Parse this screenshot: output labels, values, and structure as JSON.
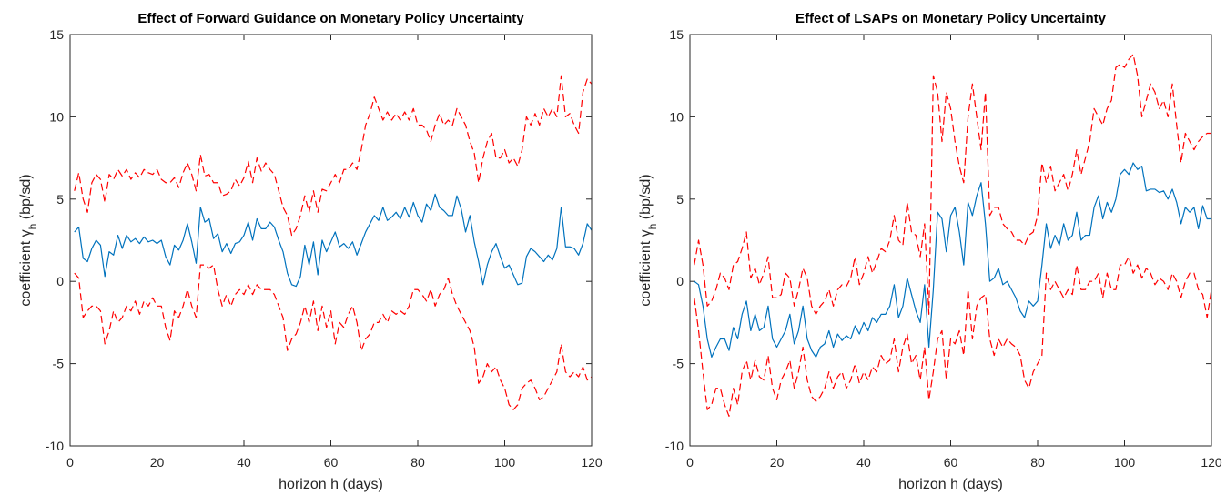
{
  "chart_data": [
    {
      "type": "line",
      "title": "Effect of Forward Guidance on Monetary Policy Uncertainty",
      "xlabel": "horizon h (days)",
      "ylabel": [
        "coefficient γ",
        "h",
        " (bp/sd)"
      ],
      "xlim": [
        0,
        120
      ],
      "xticks": [
        0,
        20,
        40,
        60,
        80,
        100,
        120
      ],
      "ylim": [
        -10,
        15
      ],
      "yticks": [
        -10,
        -5,
        0,
        5,
        10,
        15
      ],
      "x": [
        1,
        2,
        3,
        4,
        5,
        6,
        7,
        8,
        9,
        10,
        11,
        12,
        13,
        14,
        15,
        16,
        17,
        18,
        19,
        20,
        21,
        22,
        23,
        24,
        25,
        26,
        27,
        28,
        29,
        30,
        31,
        32,
        33,
        34,
        35,
        36,
        37,
        38,
        39,
        40,
        41,
        42,
        43,
        44,
        45,
        46,
        47,
        48,
        49,
        50,
        51,
        52,
        53,
        54,
        55,
        56,
        57,
        58,
        59,
        60,
        61,
        62,
        63,
        64,
        65,
        66,
        67,
        68,
        69,
        70,
        71,
        72,
        73,
        74,
        75,
        76,
        77,
        78,
        79,
        80,
        81,
        82,
        83,
        84,
        85,
        86,
        87,
        88,
        89,
        90,
        91,
        92,
        93,
        94,
        95,
        96,
        97,
        98,
        99,
        100,
        101,
        102,
        103,
        104,
        105,
        106,
        107,
        108,
        109,
        110,
        111,
        112,
        113,
        114,
        115,
        116,
        117,
        118,
        119,
        120
      ],
      "series": [
        {
          "color": "#0072bd",
          "style": "solid",
          "values": [
            3.0,
            3.3,
            1.4,
            1.2,
            2.0,
            2.5,
            2.2,
            0.3,
            1.8,
            1.6,
            2.8,
            2.0,
            2.8,
            2.4,
            2.6,
            2.3,
            2.7,
            2.4,
            2.5,
            2.3,
            2.5,
            1.5,
            1.0,
            2.2,
            1.9,
            2.5,
            3.5,
            2.4,
            1.1,
            4.5,
            3.6,
            3.8,
            2.6,
            2.9,
            1.8,
            2.3,
            1.7,
            2.3,
            2.4,
            2.8,
            3.6,
            2.5,
            3.8,
            3.2,
            3.2,
            3.6,
            3.3,
            2.5,
            1.8,
            0.5,
            -0.2,
            -0.3,
            0.3,
            2.2,
            1.0,
            2.4,
            0.4,
            2.5,
            1.8,
            2.4,
            3.0,
            2.1,
            2.3,
            2.0,
            2.4,
            1.6,
            2.3,
            3.0,
            3.5,
            4.0,
            3.7,
            4.5,
            3.7,
            3.9,
            4.2,
            3.8,
            4.5,
            3.9,
            4.8,
            4.0,
            3.6,
            4.7,
            4.3,
            5.3,
            4.5,
            4.3,
            4.0,
            4.0,
            5.2,
            4.4,
            3.0,
            4.0,
            2.4,
            1.2,
            -0.2,
            1.0,
            1.8,
            2.3,
            1.5,
            0.8,
            1.0,
            0.4,
            -0.2,
            -0.1,
            1.5,
            2.0,
            1.8,
            1.5,
            1.2,
            1.6,
            1.3,
            2.0,
            4.5,
            2.1,
            2.1,
            2.0,
            1.6,
            2.3,
            3.5,
            3.1
          ]
        },
        {
          "color": "#ff0000",
          "style": "dashed",
          "values": [
            5.5,
            6.6,
            5.0,
            4.2,
            6.0,
            6.5,
            6.2,
            4.8,
            6.5,
            6.2,
            6.8,
            6.4,
            6.8,
            6.2,
            6.6,
            6.3,
            6.8,
            6.6,
            6.5,
            6.8,
            6.2,
            6.0,
            6.0,
            6.3,
            5.7,
            6.6,
            7.2,
            6.5,
            5.5,
            7.7,
            6.4,
            6.5,
            6.0,
            6.0,
            5.2,
            5.3,
            5.5,
            6.2,
            5.8,
            6.3,
            7.3,
            6.0,
            7.5,
            6.7,
            7.2,
            6.8,
            6.5,
            5.5,
            4.5,
            4.0,
            2.8,
            3.2,
            4.0,
            5.2,
            4.2,
            5.5,
            4.2,
            5.6,
            5.5,
            6.0,
            6.5,
            6.0,
            6.8,
            6.8,
            7.2,
            6.8,
            8.0,
            9.5,
            10.2,
            11.2,
            10.5,
            9.8,
            10.3,
            9.8,
            10.2,
            9.8,
            10.3,
            9.8,
            10.5,
            9.5,
            9.5,
            9.2,
            8.5,
            9.5,
            10.2,
            9.5,
            9.8,
            9.5,
            10.5,
            10.0,
            9.5,
            8.5,
            7.8,
            6.0,
            7.5,
            8.5,
            9.0,
            7.5,
            7.5,
            8.0,
            7.2,
            7.5,
            7.0,
            8.0,
            10.0,
            9.5,
            10.2,
            9.5,
            10.5,
            10.0,
            10.5,
            10.0,
            12.5,
            10.0,
            10.2,
            9.5,
            9.0,
            11.5,
            12.3,
            12.0
          ]
        },
        {
          "color": "#ff0000",
          "style": "dashed",
          "values": [
            0.5,
            0.2,
            -2.2,
            -1.8,
            -1.5,
            -1.5,
            -1.8,
            -3.8,
            -3.0,
            -1.8,
            -2.5,
            -2.2,
            -1.5,
            -1.8,
            -1.2,
            -2.0,
            -1.2,
            -1.5,
            -1.0,
            -1.5,
            -1.5,
            -2.8,
            -3.6,
            -1.8,
            -2.2,
            -1.5,
            -0.5,
            -1.5,
            -2.2,
            1.0,
            1.0,
            0.8,
            1.0,
            -0.5,
            -1.5,
            -0.8,
            -1.5,
            -0.8,
            -0.5,
            -0.8,
            -0.2,
            -0.8,
            -0.2,
            -0.5,
            -0.5,
            -0.5,
            -0.8,
            -1.5,
            -2.2,
            -4.2,
            -3.5,
            -3.2,
            -2.5,
            -1.5,
            -2.5,
            -1.2,
            -3.0,
            -1.5,
            -2.8,
            -1.8,
            -3.8,
            -2.5,
            -2.8,
            -2.0,
            -1.5,
            -2.5,
            -4.2,
            -3.5,
            -3.2,
            -2.5,
            -2.5,
            -2.0,
            -2.5,
            -1.8,
            -2.0,
            -1.8,
            -2.0,
            -1.5,
            -0.5,
            -0.5,
            -0.8,
            -1.2,
            -0.5,
            -1.5,
            -0.8,
            -0.5,
            0.2,
            -0.8,
            -1.5,
            -2.0,
            -2.5,
            -3.0,
            -4.0,
            -6.2,
            -5.8,
            -5.0,
            -5.5,
            -5.2,
            -6.0,
            -6.5,
            -7.5,
            -7.8,
            -7.5,
            -6.5,
            -6.2,
            -6.0,
            -6.5,
            -7.2,
            -7.0,
            -6.5,
            -6.0,
            -5.5,
            -3.8,
            -5.5,
            -5.8,
            -5.5,
            -5.8,
            -5.2,
            -6.0,
            -5.8
          ]
        }
      ]
    },
    {
      "type": "line",
      "title": "Effect of LSAPs on Monetary Policy Uncertainty",
      "xlabel": "horizon h (days)",
      "ylabel": [
        "coefficient γ",
        "h",
        " (bp/sd)"
      ],
      "xlim": [
        0,
        120
      ],
      "xticks": [
        0,
        20,
        40,
        60,
        80,
        100,
        120
      ],
      "ylim": [
        -10,
        15
      ],
      "yticks": [
        -10,
        -5,
        0,
        5,
        10,
        15
      ],
      "x": [
        1,
        2,
        3,
        4,
        5,
        6,
        7,
        8,
        9,
        10,
        11,
        12,
        13,
        14,
        15,
        16,
        17,
        18,
        19,
        20,
        21,
        22,
        23,
        24,
        25,
        26,
        27,
        28,
        29,
        30,
        31,
        32,
        33,
        34,
        35,
        36,
        37,
        38,
        39,
        40,
        41,
        42,
        43,
        44,
        45,
        46,
        47,
        48,
        49,
        50,
        51,
        52,
        53,
        54,
        55,
        56,
        57,
        58,
        59,
        60,
        61,
        62,
        63,
        64,
        65,
        66,
        67,
        68,
        69,
        70,
        71,
        72,
        73,
        74,
        75,
        76,
        77,
        78,
        79,
        80,
        81,
        82,
        83,
        84,
        85,
        86,
        87,
        88,
        89,
        90,
        91,
        92,
        93,
        94,
        95,
        96,
        97,
        98,
        99,
        100,
        101,
        102,
        103,
        104,
        105,
        106,
        107,
        108,
        109,
        110,
        111,
        112,
        113,
        114,
        115,
        116,
        117,
        118,
        119,
        120
      ],
      "series": [
        {
          "color": "#0072bd",
          "style": "solid",
          "values": [
            0.0,
            -0.2,
            -1.5,
            -3.5,
            -4.6,
            -4.0,
            -3.5,
            -3.5,
            -4.2,
            -2.8,
            -3.5,
            -2.0,
            -1.2,
            -3.0,
            -2.0,
            -3.0,
            -2.8,
            -1.5,
            -3.5,
            -4.0,
            -3.5,
            -3.0,
            -2.0,
            -3.8,
            -3.0,
            -1.5,
            -3.5,
            -4.2,
            -4.6,
            -4.0,
            -3.8,
            -3.0,
            -4.0,
            -3.2,
            -3.6,
            -3.3,
            -3.5,
            -2.7,
            -3.2,
            -2.5,
            -3.0,
            -2.2,
            -2.5,
            -2.0,
            -2.0,
            -1.5,
            -0.2,
            -2.2,
            -1.5,
            0.2,
            -0.8,
            -1.8,
            -2.5,
            -0.2,
            -4.0,
            -0.5,
            4.2,
            3.8,
            1.8,
            4.0,
            4.5,
            3.0,
            1.0,
            4.8,
            4.0,
            5.2,
            6.0,
            3.5,
            0.0,
            0.2,
            0.8,
            -0.2,
            0.0,
            -0.5,
            -1.0,
            -1.8,
            -2.2,
            -1.2,
            -1.5,
            -1.2,
            1.0,
            3.5,
            2.0,
            2.8,
            2.2,
            3.5,
            2.5,
            2.8,
            4.2,
            2.5,
            2.8,
            2.8,
            4.5,
            5.2,
            3.8,
            4.8,
            4.2,
            5.0,
            6.5,
            6.8,
            6.5,
            7.2,
            6.8,
            7.0,
            5.5,
            5.6,
            5.6,
            5.4,
            5.5,
            5.0,
            5.6,
            4.8,
            3.5,
            4.5,
            4.2,
            4.5,
            3.2,
            4.6,
            3.8,
            3.8
          ]
        },
        {
          "color": "#ff0000",
          "style": "dashed",
          "values": [
            1.0,
            2.5,
            1.0,
            -1.5,
            -1.2,
            -0.5,
            0.5,
            0.2,
            -0.5,
            1.0,
            1.2,
            2.0,
            3.0,
            0.2,
            0.8,
            -0.2,
            0.5,
            1.5,
            -1.0,
            -1.0,
            -0.8,
            0.5,
            0.2,
            -1.5,
            -0.5,
            0.8,
            0.2,
            -1.5,
            -2.0,
            -1.5,
            -1.2,
            -0.5,
            -1.5,
            -0.5,
            -0.2,
            -0.3,
            0.2,
            1.5,
            -0.2,
            0.5,
            1.5,
            0.5,
            1.2,
            2.0,
            1.8,
            2.5,
            4.0,
            2.5,
            2.2,
            4.8,
            3.0,
            2.8,
            1.5,
            3.5,
            -2.0,
            12.5,
            11.5,
            8.5,
            11.5,
            10.5,
            8.5,
            7.0,
            6.0,
            10.0,
            12.0,
            10.0,
            8.0,
            11.5,
            4.0,
            4.5,
            4.5,
            3.5,
            3.2,
            3.0,
            2.5,
            2.5,
            2.2,
            2.8,
            3.0,
            4.0,
            7.2,
            6.0,
            7.0,
            5.5,
            6.0,
            6.5,
            5.5,
            6.5,
            8.0,
            6.5,
            7.5,
            8.5,
            10.5,
            10.0,
            9.5,
            10.5,
            11.0,
            13.0,
            13.2,
            13.0,
            13.5,
            13.8,
            12.5,
            10.0,
            11.0,
            12.0,
            11.5,
            10.5,
            11.0,
            10.0,
            12.0,
            9.5,
            7.2,
            9.0,
            8.5,
            8.0,
            8.5,
            8.8,
            9.0,
            9.0
          ]
        },
        {
          "color": "#ff0000",
          "style": "dashed",
          "values": [
            -1.0,
            -3.0,
            -5.5,
            -7.8,
            -7.5,
            -6.5,
            -6.5,
            -7.5,
            -8.2,
            -6.5,
            -7.5,
            -5.5,
            -4.8,
            -6.0,
            -4.8,
            -5.8,
            -6.0,
            -4.5,
            -6.5,
            -7.2,
            -6.0,
            -5.5,
            -4.8,
            -6.5,
            -5.5,
            -4.0,
            -6.0,
            -7.0,
            -7.3,
            -7.0,
            -6.5,
            -5.5,
            -6.5,
            -5.8,
            -5.5,
            -6.5,
            -6.0,
            -5.0,
            -6.2,
            -5.5,
            -6.0,
            -5.2,
            -5.5,
            -4.5,
            -5.0,
            -4.8,
            -3.5,
            -5.5,
            -4.0,
            -3.2,
            -5.0,
            -4.5,
            -6.0,
            -4.0,
            -7.2,
            -5.5,
            -3.5,
            -3.0,
            -6.0,
            -3.5,
            -3.8,
            -3.0,
            -4.5,
            -0.5,
            -3.5,
            -1.5,
            -1.0,
            -0.8,
            -3.5,
            -4.5,
            -3.5,
            -4.0,
            -3.5,
            -3.8,
            -4.0,
            -4.5,
            -6.0,
            -6.5,
            -5.5,
            -5.0,
            -4.5,
            0.5,
            -0.5,
            0.0,
            -0.5,
            -1.0,
            -0.5,
            -0.8,
            1.0,
            -0.5,
            -0.5,
            0.0,
            0.0,
            0.5,
            -1.0,
            0.5,
            -0.5,
            -0.5,
            1.0,
            1.0,
            1.5,
            0.5,
            1.0,
            0.2,
            0.8,
            0.5,
            -0.2,
            0.2,
            0.0,
            -0.5,
            0.5,
            0.0,
            -1.0,
            0.0,
            0.5,
            0.5,
            -0.5,
            -0.8,
            -2.2,
            -0.5
          ]
        }
      ]
    }
  ]
}
